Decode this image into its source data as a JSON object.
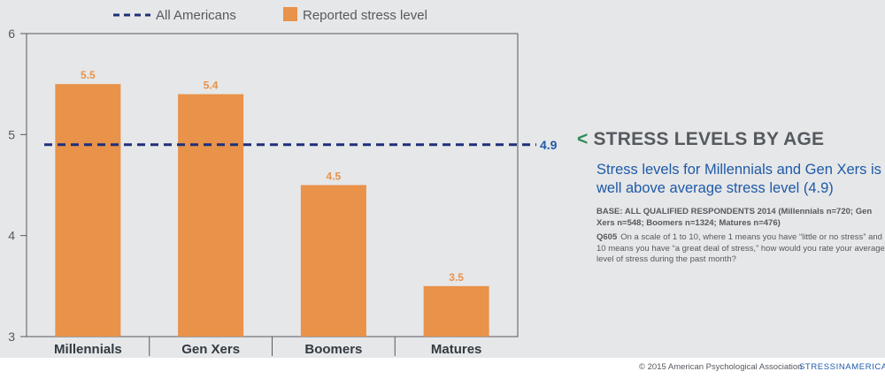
{
  "chart_data": {
    "type": "bar",
    "categories": [
      "Millennials",
      "Gen Xers",
      "Boomers",
      "Matures"
    ],
    "values": [
      5.5,
      5.4,
      4.5,
      3.5
    ],
    "data_labels": [
      "5.5",
      "5.4",
      "4.5",
      "3.5"
    ],
    "series_name": "Reported stress level",
    "reference_line": {
      "name": "All Americans",
      "value": 4.9,
      "label": "4.9"
    },
    "ylim": [
      3,
      6
    ],
    "yticks": [
      3,
      4,
      5,
      6
    ],
    "ytick_labels": [
      "3",
      "4",
      "5",
      "6"
    ],
    "xlabel": "",
    "ylabel": "",
    "grid": false,
    "legend_position": "top",
    "colors": {
      "bar": "#e8924a",
      "bar_label": "#e8924a",
      "reference": "#1e2f7a",
      "axis": "#555a5f"
    }
  },
  "side_panel": {
    "arrow": "<",
    "title": "STRESS LEVELS BY AGE",
    "subtitle": "Stress levels for Millennials and Gen Xers is well above average stress level (4.9)",
    "base_note": "BASE: ALL QUALIFIED RESPONDENTS 2014 (Millennials n=720; Gen Xers n=548; Boomers n=1324; Matures n=476)",
    "question_id": "Q605",
    "question_text": "On a scale of 1 to 10, where 1 means you have “little or no stress” and 10 means you have “a great deal of stress,” how would you rate your average level of stress during the past month?"
  },
  "footer": {
    "copyright": "© 2015 American Psychological Association",
    "site": "STRESSINAMERICA.ORG"
  }
}
